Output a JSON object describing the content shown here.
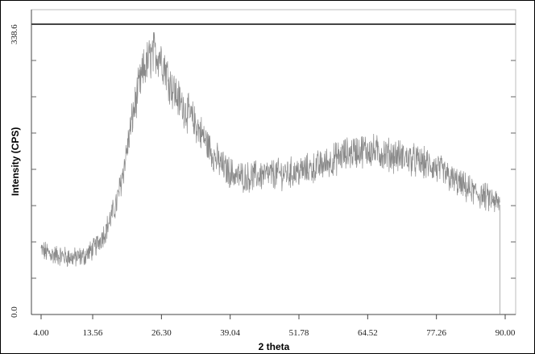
{
  "chart_data": {
    "type": "line",
    "xlabel": "2 theta",
    "ylabel": "Intensity (CPS)",
    "x_tick_labels": [
      "4.00",
      "13.56",
      "26.30",
      "39.04",
      "51.78",
      "64.52",
      "77.26",
      "90.00"
    ],
    "x_ticks": [
      4.0,
      13.56,
      26.3,
      39.04,
      51.78,
      64.52,
      77.26,
      90.0
    ],
    "y_tick_labels": [
      "0.0",
      "338.6"
    ],
    "y_ticks": [
      0.0,
      338.6
    ],
    "xlim": [
      4.0,
      90.0
    ],
    "ylim": [
      0.0,
      338.6
    ],
    "grid": false,
    "legend": "none",
    "line_color": "#8a8a8a",
    "series": [
      {
        "x": [
          4,
          6,
          8,
          10,
          12,
          14,
          16,
          18,
          19,
          20,
          21,
          22,
          23,
          24,
          25,
          26,
          27,
          28,
          30,
          32,
          34,
          36,
          38,
          40,
          42,
          44,
          46,
          48,
          50,
          52,
          54,
          56,
          58,
          60,
          62,
          64,
          66,
          68,
          70,
          72,
          74,
          76,
          78,
          80,
          82,
          84,
          86,
          88,
          89
        ],
        "values": [
          75,
          70,
          68,
          66,
          68,
          78,
          98,
          130,
          160,
          195,
          232,
          262,
          285,
          298,
          305,
          303,
          288,
          268,
          245,
          228,
          208,
          185,
          170,
          162,
          160,
          162,
          163,
          164,
          165,
          167,
          170,
          174,
          180,
          186,
          190,
          192,
          190,
          187,
          185,
          182,
          178,
          174,
          168,
          158,
          150,
          143,
          138,
          132,
          128
        ]
      }
    ]
  }
}
